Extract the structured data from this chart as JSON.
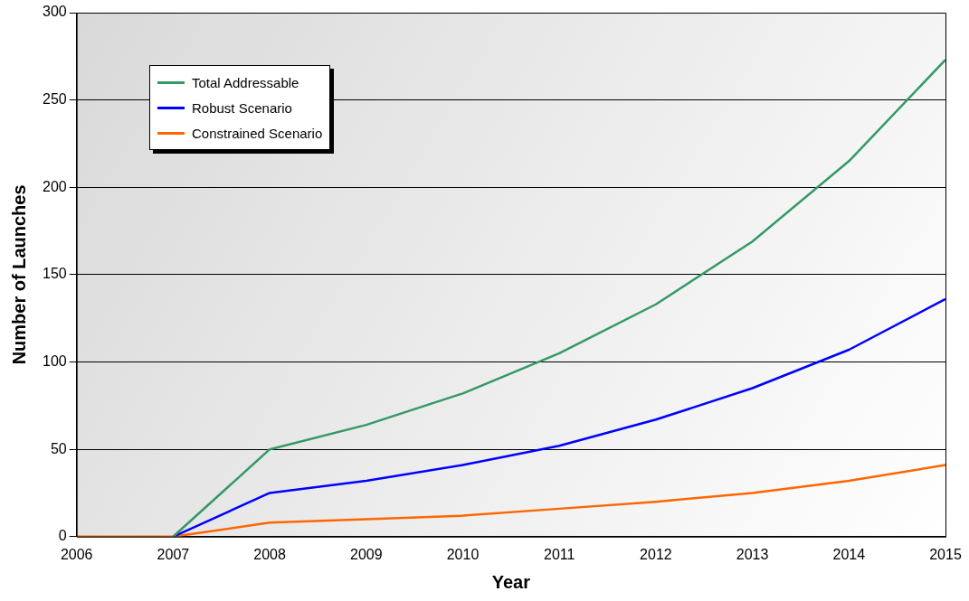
{
  "chart_data": {
    "type": "line",
    "xlabel": "Year",
    "ylabel": "Number of Launches",
    "x": [
      2006,
      2007,
      2008,
      2009,
      2010,
      2011,
      2012,
      2013,
      2014,
      2015
    ],
    "series": [
      {
        "name": "Total Addressable",
        "color": "#339966",
        "values": [
          null,
          0,
          50,
          64,
          82,
          105,
          133,
          169,
          215,
          273
        ]
      },
      {
        "name": "Robust Scenario",
        "color": "#0000ff",
        "values": [
          null,
          0,
          25,
          32,
          41,
          52,
          67,
          85,
          107,
          136
        ]
      },
      {
        "name": "Constrained Scenario",
        "color": "#ff6600",
        "values": [
          0,
          0,
          8,
          10,
          12,
          16,
          20,
          25,
          32,
          41
        ]
      }
    ],
    "xlim": [
      2006,
      2015
    ],
    "xticks": [
      2006,
      2007,
      2008,
      2009,
      2010,
      2011,
      2012,
      2013,
      2014,
      2015
    ],
    "ylim": [
      0,
      300
    ],
    "yticks": [
      0,
      50,
      100,
      150,
      200,
      250,
      300
    ],
    "grid": "y",
    "legend": "top left",
    "marker": "none",
    "line_style": "solid"
  }
}
